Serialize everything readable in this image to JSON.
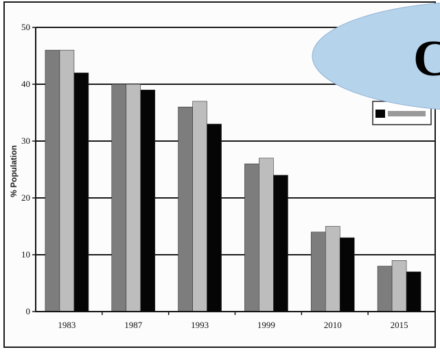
{
  "chart_data": {
    "type": "bar",
    "title": "",
    "xlabel": "",
    "ylabel": "% Population",
    "ylim": [
      0,
      50
    ],
    "yticks": [
      0,
      10,
      20,
      30,
      40,
      50
    ],
    "categories": [
      "1983",
      "1987",
      "1993",
      "1999",
      "2010",
      "2015"
    ],
    "series": [
      {
        "color": "#7d7d7d",
        "values": [
          46,
          40,
          36,
          26,
          14,
          8
        ]
      },
      {
        "color": "#bdbdbd",
        "values": [
          46,
          40,
          37,
          27,
          15,
          9
        ]
      },
      {
        "color": "#050505",
        "values": [
          42,
          39,
          33,
          24,
          13,
          7
        ]
      }
    ],
    "grid": true,
    "legend_position": "top-right (partially hidden)"
  },
  "overlay": {
    "callout_text": "C",
    "callout_color": "#b6d3ec"
  }
}
